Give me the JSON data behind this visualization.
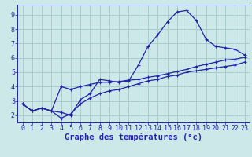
{
  "background_color": "#cce8e8",
  "grid_color": "#aacccc",
  "line_color": "#2222aa",
  "xlabel": "Graphe des températures (°c)",
  "xlabel_fontsize": 7.5,
  "tick_fontsize": 6.0,
  "xlim": [
    -0.5,
    23.5
  ],
  "ylim": [
    1.5,
    9.7
  ],
  "xticks": [
    0,
    1,
    2,
    3,
    4,
    5,
    6,
    7,
    8,
    9,
    10,
    11,
    12,
    13,
    14,
    15,
    16,
    17,
    18,
    19,
    20,
    21,
    22,
    23
  ],
  "yticks": [
    2,
    3,
    4,
    5,
    6,
    7,
    8,
    9
  ],
  "line1_x": [
    0,
    1,
    2,
    3,
    4,
    5,
    6,
    7,
    8,
    9,
    10,
    11,
    12,
    13,
    14,
    15,
    16,
    17,
    18,
    19,
    20,
    21,
    22,
    23
  ],
  "line1_y": [
    2.8,
    2.3,
    2.5,
    2.3,
    2.2,
    2.0,
    3.1,
    3.5,
    4.5,
    4.4,
    4.3,
    4.4,
    5.5,
    6.8,
    7.6,
    8.5,
    9.2,
    9.3,
    8.6,
    7.3,
    6.8,
    6.7,
    6.6,
    6.2
  ],
  "line2_x": [
    0,
    1,
    2,
    3,
    4,
    5,
    6,
    7,
    8,
    9,
    10,
    11,
    12,
    13,
    14,
    15,
    16,
    17,
    18,
    19,
    20,
    21,
    22,
    23
  ],
  "line2_y": [
    2.8,
    2.3,
    2.5,
    2.3,
    1.8,
    2.1,
    2.8,
    3.2,
    3.5,
    3.7,
    3.8,
    4.0,
    4.2,
    4.4,
    4.5,
    4.7,
    4.8,
    5.0,
    5.1,
    5.2,
    5.3,
    5.4,
    5.5,
    5.7
  ],
  "line3_x": [
    0,
    1,
    2,
    3,
    4,
    5,
    6,
    7,
    8,
    9,
    10,
    11,
    12,
    13,
    14,
    15,
    16,
    17,
    18,
    19,
    20,
    21,
    22,
    23
  ],
  "line3_y": [
    2.8,
    2.3,
    2.5,
    2.3,
    4.0,
    3.8,
    4.0,
    4.15,
    4.3,
    4.3,
    4.35,
    4.45,
    4.5,
    4.65,
    4.75,
    4.9,
    5.05,
    5.2,
    5.4,
    5.55,
    5.7,
    5.85,
    5.9,
    6.05
  ],
  "marker": "+"
}
